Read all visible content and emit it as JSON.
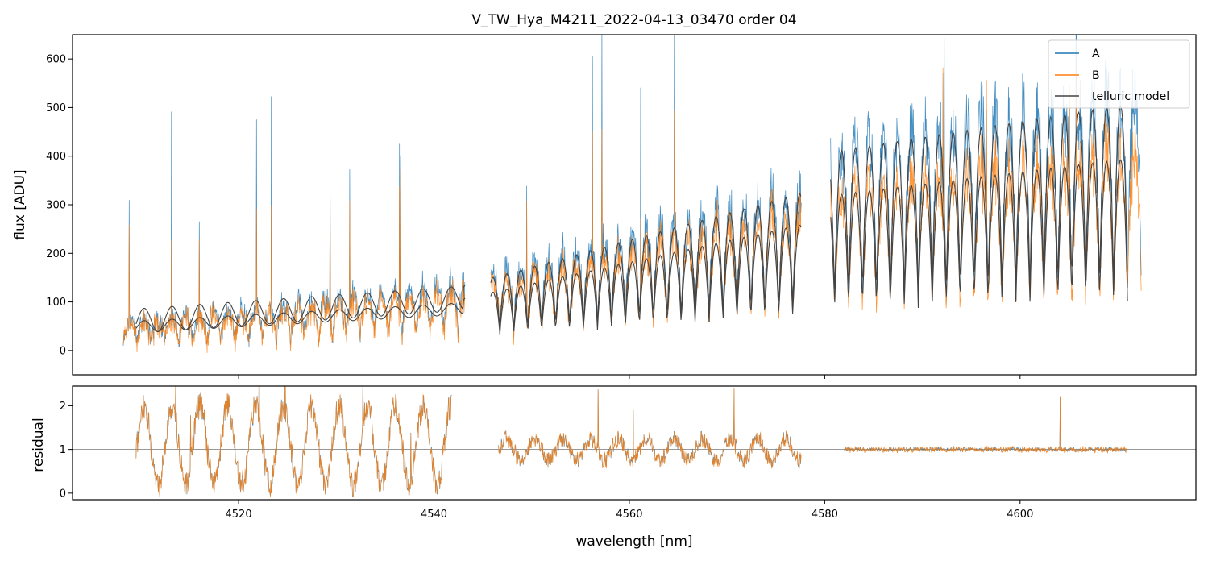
{
  "chart_data": [
    {
      "type": "line",
      "title": "V_TW_Hya_M4211_2022-04-13_03470  order 04",
      "xlabel": "",
      "ylabel": "flux [ADU]",
      "xlim": [
        4503,
        4618
      ],
      "ylim": [
        -50,
        650
      ],
      "yticks": [
        0,
        100,
        200,
        300,
        400,
        500,
        600
      ],
      "xticks": [
        4520,
        4540,
        4560,
        4580,
        4600
      ],
      "legend_position": "top-right",
      "series": [
        {
          "name": "A",
          "color": "#1f77b4",
          "x_start": 4508.2,
          "x_end": 4612.4
        },
        {
          "name": "B",
          "color": "#ff7f0e",
          "x_start": 4508.2,
          "x_end": 4612.4
        },
        {
          "name": "telluric model",
          "color": "#444444",
          "x_start": 4509.5,
          "x_end": 4611.0
        }
      ],
      "legend": [
        "A",
        "B",
        "telluric model"
      ],
      "gaps": [
        [
          4543.2,
          4545.8
        ],
        [
          4577.6,
          4580.6
        ]
      ]
    },
    {
      "type": "line",
      "title": "",
      "xlabel": "wavelength [nm]",
      "ylabel": "residual",
      "xlim": [
        4503,
        4618
      ],
      "ylim": [
        -0.15,
        2.45
      ],
      "yticks": [
        0,
        1,
        2
      ],
      "xticks": [
        4520,
        4540,
        4560,
        4580,
        4600
      ],
      "reference_line": 1,
      "series": [
        {
          "name": "A",
          "color": "#1f77b4"
        },
        {
          "name": "B",
          "color": "#ff7f0e"
        }
      ],
      "segments": [
        [
          4509.5,
          4541.8
        ],
        [
          4546.6,
          4577.6
        ],
        [
          4582.0,
          4611.0
        ]
      ]
    }
  ],
  "tick_labels": {
    "top_y": [
      "0",
      "100",
      "200",
      "300",
      "400",
      "500",
      "600"
    ],
    "bottom_y": [
      "0",
      "1",
      "2"
    ],
    "x": [
      "4520",
      "4540",
      "4560",
      "4580",
      "4600"
    ]
  }
}
